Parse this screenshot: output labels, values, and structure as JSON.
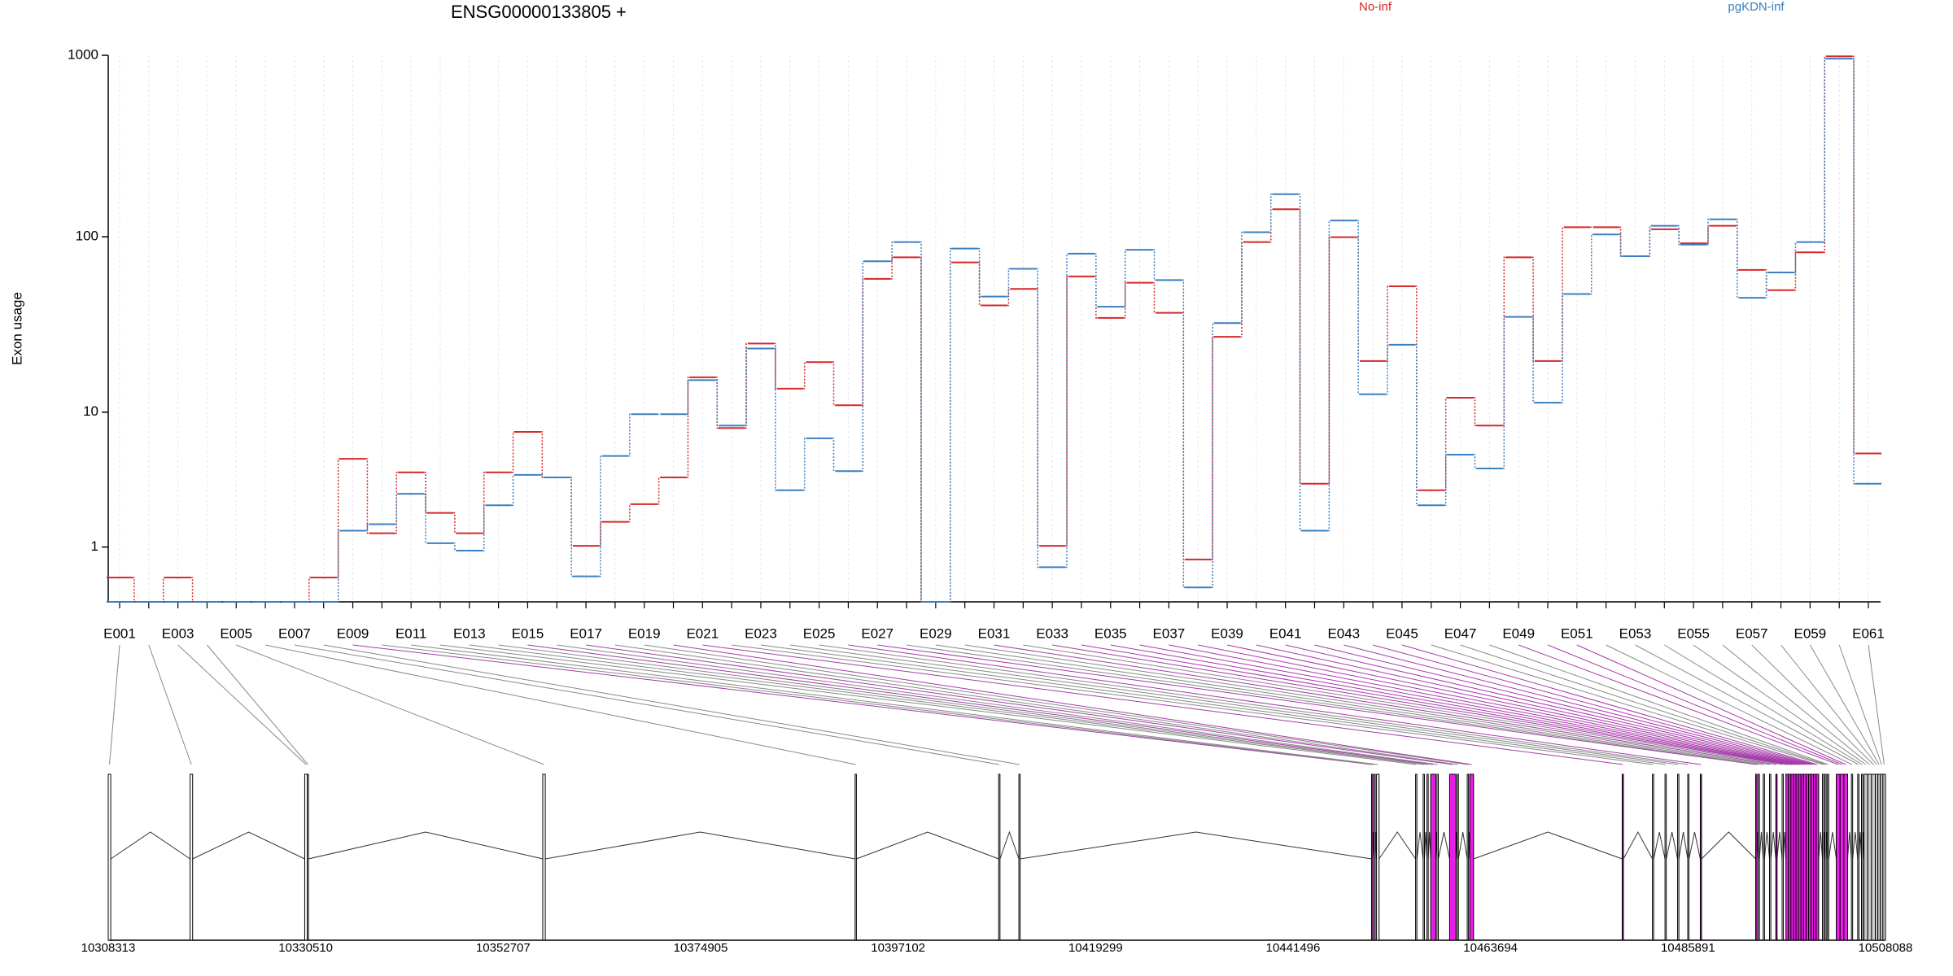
{
  "chart_data": {
    "type": "line",
    "title": "ENSG00000133805 +",
    "ylabel": "Exon usage",
    "categories": [
      "E001",
      null,
      "E003",
      null,
      "E005",
      null,
      "E007",
      null,
      "E009",
      null,
      "E011",
      null,
      "E013",
      null,
      "E015",
      null,
      "E017",
      null,
      "E019",
      null,
      "E021",
      null,
      "E023",
      null,
      "E025",
      null,
      "E027",
      null,
      "E029",
      null,
      "E031",
      null,
      "E033",
      null,
      "E035",
      null,
      "E037",
      null,
      "E039",
      null,
      "E041",
      null,
      "E043",
      null,
      "E045",
      null,
      "E047",
      null,
      "E049",
      null,
      "E051",
      null,
      "E053",
      null,
      "E055",
      null,
      "E057",
      null,
      "E059",
      null,
      "E061"
    ],
    "series": [
      {
        "name": "No-inf",
        "color": "#d62728",
        "values": [
          0.36,
          0,
          0.36,
          0,
          0,
          0,
          0,
          0.36,
          5.1,
          1.38,
          4.14,
          2.08,
          1.38,
          4.14,
          7.57,
          3.82,
          1.03,
          1.75,
          2.44,
          3.82,
          16.1,
          8.0,
          25.2,
          13.8,
          19.7,
          11.0,
          58.3,
          76.9,
          0,
          72,
          41.4,
          51.2,
          1.03,
          60.2,
          35.2,
          55.5,
          37.6,
          0.71,
          27.5,
          93.4,
          142,
          3.45,
          99.5,
          20,
          53,
          3.1,
          12.2,
          8.28,
          76.9,
          20,
          113,
          113,
          78,
          110,
          92,
          115,
          65.4,
          50.4,
          82,
          987,
          5.53
        ]
      },
      {
        "name": "pgKDN-inf",
        "color": "#3b7fc0",
        "values": [
          0,
          0,
          0,
          0,
          0,
          0,
          0,
          0,
          1.46,
          1.67,
          2.92,
          1.1,
          0.91,
          2.39,
          3.98,
          3.82,
          0.38,
          5.32,
          9.72,
          9.72,
          15.5,
          8.28,
          23.6,
          3.1,
          6.91,
          4.22,
          73.1,
          93.4,
          0,
          86,
          46.4,
          66.4,
          0.55,
          80.6,
          40.7,
          84.7,
          57.4,
          0.2,
          32.9,
          106,
          172,
          1.46,
          123,
          12.8,
          24.8,
          2.39,
          5.43,
          4.4,
          35.7,
          11.4,
          48,
          103,
          78,
          115,
          90.4,
          125,
          45.7,
          63.3,
          93.4,
          959,
          3.45
        ]
      }
    ],
    "yscale": "log1p",
    "ylim": [
      0,
      1000
    ],
    "yticks": [
      1,
      10,
      100,
      1000
    ],
    "grid": true,
    "gene_model": {
      "xlim": [
        10308313,
        10508088
      ],
      "xticks": [
        10308313,
        10330510,
        10352707,
        10374905,
        10397102,
        10419299,
        10441496,
        10463694,
        10485891,
        10508088
      ],
      "exons": [
        [
          10308313,
          10308596
        ],
        [
          10317516,
          10317799
        ],
        [
          10330399,
          10330683
        ],
        [
          10330683,
          10330824
        ],
        [
          10357158,
          10357441
        ],
        [
          10392270,
          10392412
        ],
        [
          10408410,
          10408552
        ],
        [
          10410676,
          10410817
        ],
        [
          10450318,
          10450459
        ],
        [
          10450601,
          10450742
        ],
        [
          10450884,
          10451167
        ],
        [
          10455273,
          10455415
        ],
        [
          10456123,
          10456265
        ],
        [
          10456548,
          10456690
        ],
        [
          10456973,
          10457539
        ],
        [
          10457681,
          10457823
        ],
        [
          10459097,
          10459805
        ],
        [
          10459947,
          10460088
        ],
        [
          10461079,
          10461221
        ],
        [
          10461363,
          10461787
        ],
        [
          10478493,
          10478635
        ],
        [
          10481891,
          10482033
        ],
        [
          10483309,
          10483451
        ],
        [
          10484724,
          10484866
        ],
        [
          10485858,
          10485999
        ],
        [
          10487273,
          10487414
        ],
        [
          10493500,
          10493642
        ],
        [
          10493783,
          10493925
        ],
        [
          10494349,
          10494491
        ],
        [
          10495057,
          10495199
        ],
        [
          10495765,
          10495907
        ],
        [
          10496473,
          10496614
        ],
        [
          10496898,
          10497181
        ],
        [
          10497181,
          10497464
        ],
        [
          10497464,
          10497747
        ],
        [
          10497747,
          10498030
        ],
        [
          10498030,
          10498313
        ],
        [
          10498313,
          10498596
        ],
        [
          10498596,
          10498879
        ],
        [
          10498879,
          10499162
        ],
        [
          10499162,
          10499446
        ],
        [
          10499446,
          10499729
        ],
        [
          10499729,
          10500012
        ],
        [
          10500012,
          10500295
        ],
        [
          10500295,
          10500578
        ],
        [
          10501003,
          10501144
        ],
        [
          10501286,
          10501427
        ],
        [
          10501569,
          10501711
        ],
        [
          10502560,
          10502985
        ],
        [
          10502985,
          10503410
        ],
        [
          10503410,
          10503834
        ],
        [
          10504259,
          10504401
        ],
        [
          10504967,
          10505109
        ],
        [
          10505392,
          10505534
        ],
        [
          10505675,
          10506100
        ],
        [
          10506100,
          10506525
        ],
        [
          10506525,
          10506950
        ],
        [
          10506950,
          10507233
        ],
        [
          10507233,
          10507516
        ],
        [
          10507516,
          10507799
        ],
        [
          10507799,
          10508088
        ]
      ],
      "exon_colors": [
        "#ffffff",
        "#ffffff",
        "#ffffff",
        "#ffffff",
        "#ffffff",
        "#ffffff",
        "#ffffff",
        "#ffffff",
        "#e81ee8",
        "#ffffff",
        "#ffffff",
        "#ffffff",
        "#ffffff",
        "#ffffff",
        "#e81ee8",
        "#ffffff",
        "#e81ee8",
        "#ffffff",
        "#ffffff",
        "#e81ee8",
        "#e81ee8",
        "#ffffff",
        "#ffffff",
        "#ffffff",
        "#ffffff",
        "#e81ee8",
        "#e81ee8",
        "#ffffff",
        "#ffffff",
        "#ffffff",
        "#e81ee8",
        "#ffffff",
        "#e81ee8",
        "#e81ee8",
        "#e81ee8",
        "#e81ee8",
        "#e81ee8",
        "#e81ee8",
        "#e81ee8",
        "#e81ee8",
        "#e81ee8",
        "#e81ee8",
        "#e81ee8",
        "#e81ee8",
        "#e81ee8",
        "#ffffff",
        "#ffffff",
        "#ffffff",
        "#e81ee8",
        "#e81ee8",
        "#e81ee8",
        "#ffffff",
        "#ffffff",
        "#ffffff",
        "#cccccc",
        "#cccccc",
        "#cccccc",
        "#cccccc",
        "#cccccc",
        "#cccccc",
        "#cccccc"
      ]
    }
  }
}
